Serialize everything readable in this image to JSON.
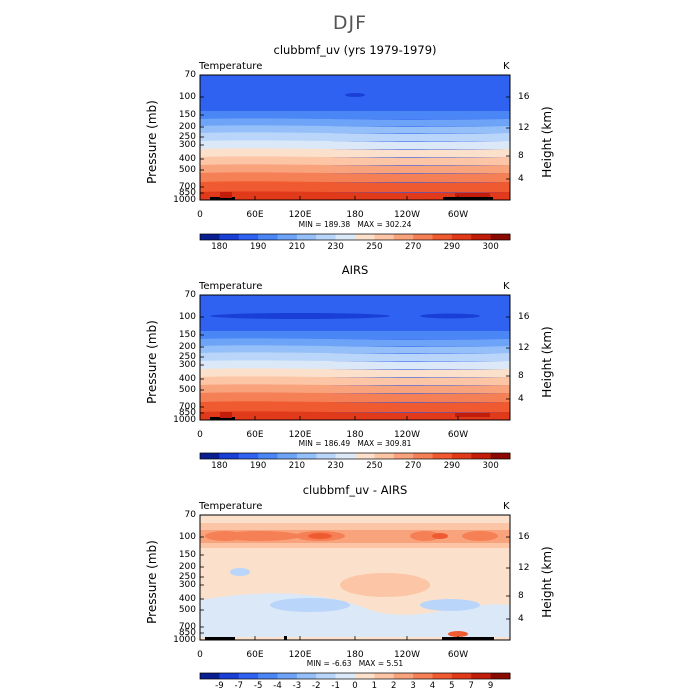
{
  "main_title": "DJF",
  "chart_data": [
    {
      "type": "heatmap",
      "title": "clubbmf_uv (yrs 1979-1979)",
      "field_label": "Temperature",
      "unit": "K",
      "ylabel": "Pressure (mb)",
      "ylabel_right": "Height (km)",
      "y_ticks": [
        "70",
        "100",
        "150",
        "200",
        "250",
        "300",
        "400",
        "500",
        "700",
        "850",
        "1000"
      ],
      "y_ticks_right": [
        "16",
        "12",
        "8",
        "4"
      ],
      "x_ticks": [
        "0",
        "60E",
        "120E",
        "180",
        "120W",
        "60W"
      ],
      "min_label": "MIN = 189.38",
      "max_label": "MAX = 302.24",
      "colorbar_ticks": [
        "180",
        "190",
        "210",
        "230",
        "250",
        "270",
        "290",
        "300"
      ],
      "colors": [
        "#0a1f8f",
        "#1a3fd6",
        "#2f62f0",
        "#4a86f5",
        "#6ea4f7",
        "#94bff8",
        "#b9d6fa",
        "#dbe8f8",
        "#fbe1cc",
        "#fbc5a6",
        "#f9a37d",
        "#f58056",
        "#ef5a30",
        "#e03a1a",
        "#c21d0a",
        "#8a0a02"
      ]
    },
    {
      "type": "heatmap",
      "title": "AIRS",
      "field_label": "Temperature",
      "unit": "K",
      "ylabel": "Pressure (mb)",
      "ylabel_right": "Height (km)",
      "y_ticks": [
        "70",
        "100",
        "150",
        "200",
        "250",
        "300",
        "400",
        "500",
        "700",
        "850",
        "1000"
      ],
      "y_ticks_right": [
        "16",
        "12",
        "8",
        "4"
      ],
      "x_ticks": [
        "0",
        "60E",
        "120E",
        "180",
        "120W",
        "60W"
      ],
      "min_label": "MIN = 186.49",
      "max_label": "MAX = 309.81",
      "colorbar_ticks": [
        "180",
        "190",
        "210",
        "230",
        "250",
        "270",
        "290",
        "300"
      ],
      "colors": [
        "#0a1f8f",
        "#1a3fd6",
        "#2f62f0",
        "#4a86f5",
        "#6ea4f7",
        "#94bff8",
        "#b9d6fa",
        "#dbe8f8",
        "#fbe1cc",
        "#fbc5a6",
        "#f9a37d",
        "#f58056",
        "#ef5a30",
        "#e03a1a",
        "#c21d0a",
        "#8a0a02"
      ]
    },
    {
      "type": "heatmap",
      "title": "clubbmf_uv - AIRS",
      "field_label": "Temperature",
      "unit": "K",
      "ylabel": "Pressure (mb)",
      "ylabel_right": "Height (km)",
      "y_ticks": [
        "70",
        "100",
        "150",
        "200",
        "250",
        "300",
        "400",
        "500",
        "700",
        "850",
        "1000"
      ],
      "y_ticks_right": [
        "16",
        "12",
        "8",
        "4"
      ],
      "x_ticks": [
        "0",
        "60E",
        "120E",
        "180",
        "120W",
        "60W"
      ],
      "min_label": "MIN = -6.63",
      "max_label": "MAX = 5.51",
      "colorbar_ticks": [
        "-9",
        "-7",
        "-5",
        "-4",
        "-3",
        "-2",
        "-1",
        "0",
        "1",
        "2",
        "3",
        "4",
        "5",
        "7",
        "9"
      ],
      "colors": [
        "#0a1f8f",
        "#1a3fd6",
        "#2f62f0",
        "#4a86f5",
        "#6ea4f7",
        "#94bff8",
        "#b9d6fa",
        "#dbe8f8",
        "#fbe1cc",
        "#fbc5a6",
        "#f9a37d",
        "#f58056",
        "#ef5a30",
        "#e03a1a",
        "#c21d0a",
        "#8a0a02"
      ]
    }
  ]
}
